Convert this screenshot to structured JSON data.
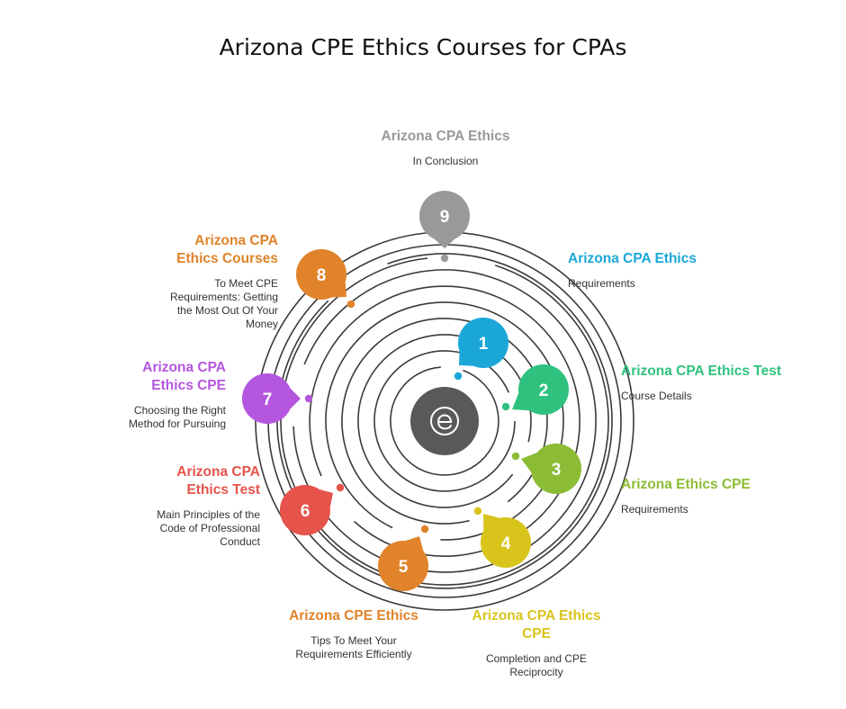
{
  "title": "Arizona CPE Ethics Courses for CPAs",
  "center": {
    "icon": "e-logo-icon",
    "color": "#595959"
  },
  "steps": [
    {
      "number": "1",
      "heading": "Arizona CPA Ethics",
      "description": "Requirements",
      "color": "#1aa7d8"
    },
    {
      "number": "2",
      "heading": "Arizona CPA Ethics Test",
      "description": "Course Details",
      "color": "#2ec27e"
    },
    {
      "number": "3",
      "heading": "Arizona Ethics CPE",
      "description": "Requirements",
      "color": "#8cbc35"
    },
    {
      "number": "4",
      "heading": "Arizona CPA Ethics CPE",
      "description": "Completion and CPE Reciprocity",
      "color": "#d9c41c"
    },
    {
      "number": "5",
      "heading": "Arizona CPE Ethics",
      "description": "Tips To Meet Your Requirements Efficiently",
      "color": "#e0832a"
    },
    {
      "number": "6",
      "heading": "Arizona CPA Ethics Test",
      "description": "Main Principles of the Code of Professional Conduct",
      "color": "#e5534b"
    },
    {
      "number": "7",
      "heading": "Arizona CPA Ethics CPE",
      "description": "Choosing the Right Method for Pursuing",
      "color": "#b556df"
    },
    {
      "number": "8",
      "heading": "Arizona CPA Ethics Courses",
      "description": "To Meet CPE Requirements: Getting the Most Out Of Your Money",
      "color": "#e0832a"
    },
    {
      "number": "9",
      "heading": "Arizona CPA Ethics",
      "description": "In Conclusion",
      "color": "#999999"
    }
  ]
}
